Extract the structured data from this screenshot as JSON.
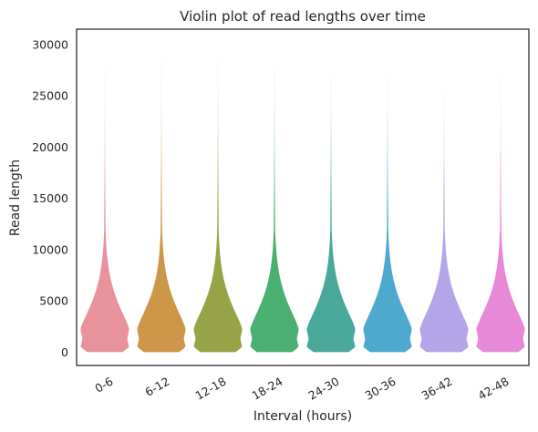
{
  "chart_data": {
    "type": "violin",
    "title": "Violin plot of read lengths over time",
    "xlabel": "Interval (hours)",
    "ylabel": "Read length",
    "ylim": [
      -1300,
      31500
    ],
    "yticks": [
      0,
      5000,
      10000,
      15000,
      20000,
      25000,
      30000
    ],
    "grid": false,
    "legend": "none",
    "categories": [
      "0-6",
      "6-12",
      "12-18",
      "18-24",
      "24-30",
      "30-36",
      "36-42",
      "42-48"
    ],
    "colors": [
      "#e8929c",
      "#cc9748",
      "#96a346",
      "#4aaf70",
      "#4aa89b",
      "#4ea9cf",
      "#b4a4e8",
      "#e889d8"
    ],
    "series": [
      {
        "category": "0-6",
        "min": 0,
        "max": 29000,
        "median": 2700
      },
      {
        "category": "6-12",
        "min": 0,
        "max": 30000,
        "median": 2800
      },
      {
        "category": "12-18",
        "min": 0,
        "max": 30000,
        "median": 2700
      },
      {
        "category": "18-24",
        "min": 0,
        "max": 30000,
        "median": 2700
      },
      {
        "category": "24-30",
        "min": 0,
        "max": 28000,
        "median": 2700
      },
      {
        "category": "30-36",
        "min": 0,
        "max": 28000,
        "median": 2700
      },
      {
        "category": "36-42",
        "min": 0,
        "max": 26000,
        "median": 2600
      },
      {
        "category": "42-48",
        "min": 0,
        "max": 27500,
        "median": 2400
      }
    ]
  }
}
